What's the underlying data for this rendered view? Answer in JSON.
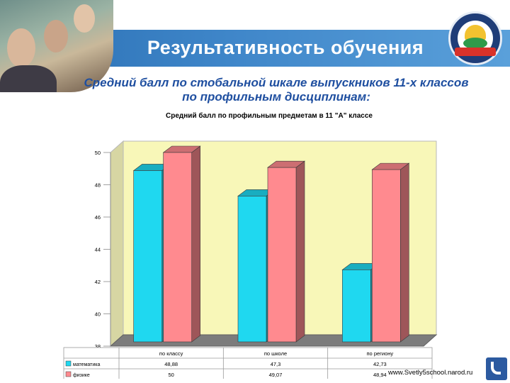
{
  "header": {
    "title": "Результативность обучения"
  },
  "subtitle": {
    "line1": "Средний балл по стобальной шкале выпускников 11-х классов",
    "line2": "по профильным дисциплинам:"
  },
  "footer": {
    "source": "www.Svetly5school.narod.ru"
  },
  "colors": {
    "header_band": "#3f86c9",
    "series_math": "#1fd8f0",
    "series_physics": "#ff8a8f",
    "plot_back_wall": "#f8f7b8",
    "plot_floor": "#7c7c7c"
  },
  "icons": {
    "emblem": "school-emblem-icon",
    "nav": "return-arrow-icon"
  },
  "chart_data": {
    "type": "bar",
    "title": "Средний балл по профильным предметам в 11 \"А\" классе",
    "categories": [
      "по классу",
      "по школе",
      "по региону"
    ],
    "series": [
      {
        "name": "математика",
        "values": [
          48.88,
          47.3,
          42.73
        ],
        "labels": [
          "48,88",
          "47,3",
          "42,73"
        ]
      },
      {
        "name": "физике",
        "values": [
          50,
          49.07,
          48.94
        ],
        "labels": [
          "50",
          "49,07",
          "48,94"
        ]
      }
    ],
    "yticks": [
      "38",
      "40",
      "42",
      "44",
      "46",
      "48",
      "50"
    ],
    "ylim": [
      38,
      50
    ],
    "grid": false,
    "legend": "table-below"
  }
}
